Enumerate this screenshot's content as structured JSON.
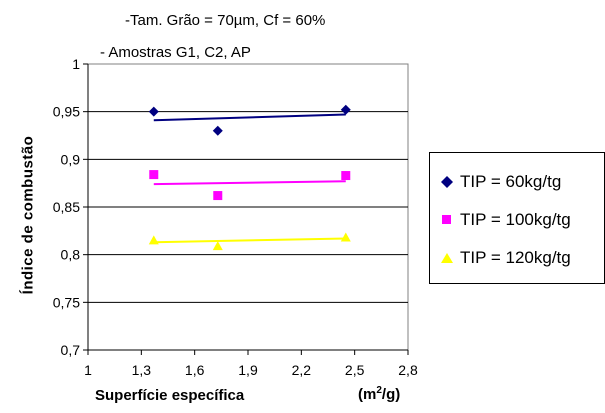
{
  "annotations": [
    "-Tam. Grão = 70µm, Cf = 60%",
    "- Amostras G1, C2, AP"
  ],
  "chart_data": {
    "type": "scatter",
    "title": "",
    "xlabel": "Superfície específica",
    "xlabel_unit": "(m²/g)",
    "xlabel_unit_base": "(m",
    "xlabel_unit_sup": "2",
    "xlabel_unit_tail": "/g)",
    "ylabel": "Índice de combustão",
    "xlim": [
      1,
      2.8
    ],
    "ylim": [
      0.7,
      1
    ],
    "x_ticks": [
      "1",
      "1,3",
      "1,6",
      "1,9",
      "2,2",
      "2,5",
      "2,8"
    ],
    "y_ticks": [
      "0,7",
      "0,75",
      "0,8",
      "0,85",
      "0,9",
      "0,95",
      "1"
    ],
    "grid": "horizontal",
    "legend_position": "right",
    "series": [
      {
        "name": "TIP = 60kg/tg",
        "color": "#000080",
        "marker": "diamond",
        "points": [
          [
            1.37,
            0.95
          ],
          [
            1.73,
            0.93
          ],
          [
            2.45,
            0.952
          ]
        ],
        "trendline": [
          [
            1.37,
            0.941
          ],
          [
            2.45,
            0.947
          ]
        ]
      },
      {
        "name": "TIP = 100kg/tg",
        "color": "#ff00ff",
        "marker": "square",
        "points": [
          [
            1.37,
            0.884
          ],
          [
            1.73,
            0.862
          ],
          [
            2.45,
            0.883
          ]
        ],
        "trendline": [
          [
            1.37,
            0.874
          ],
          [
            2.45,
            0.877
          ]
        ]
      },
      {
        "name": "TIP = 120kg/tg",
        "color": "#ffff00",
        "marker": "triangle",
        "points": [
          [
            1.37,
            0.815
          ],
          [
            1.73,
            0.809
          ],
          [
            2.45,
            0.818
          ]
        ],
        "trendline": [
          [
            1.37,
            0.813
          ],
          [
            2.45,
            0.817
          ]
        ]
      }
    ]
  }
}
